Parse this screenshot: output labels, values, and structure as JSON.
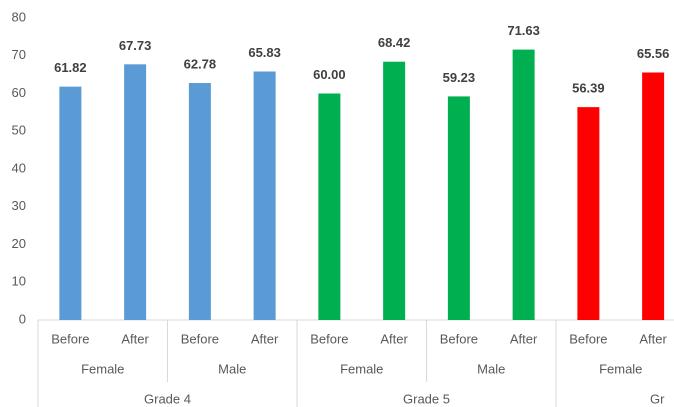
{
  "chart_data": {
    "type": "bar",
    "categories": [
      "Before",
      "After",
      "Before",
      "After",
      "Before",
      "After",
      "Before",
      "After",
      "Before",
      "After"
    ],
    "groups": [
      "Female",
      "Male",
      "Female",
      "Male",
      "Female"
    ],
    "supergroups": [
      "Grade 4",
      "Grade 5",
      "Gr"
    ],
    "values": [
      61.82,
      67.73,
      62.78,
      65.83,
      60.0,
      68.42,
      59.23,
      71.63,
      56.39,
      65.56
    ],
    "value_labels": [
      "61.82",
      "67.73",
      "62.78",
      "65.83",
      "60.00",
      "68.42",
      "59.23",
      "71.63",
      "56.39",
      "65.56"
    ],
    "colors": [
      "#5b9bd5",
      "#5b9bd5",
      "#5b9bd5",
      "#5b9bd5",
      "#00b050",
      "#00b050",
      "#00b050",
      "#00b050",
      "#ff0000",
      "#ff0000"
    ],
    "ylim": [
      0,
      80
    ],
    "yticks": [
      0,
      10,
      20,
      30,
      40,
      50,
      60,
      70,
      80
    ],
    "grid": false
  }
}
